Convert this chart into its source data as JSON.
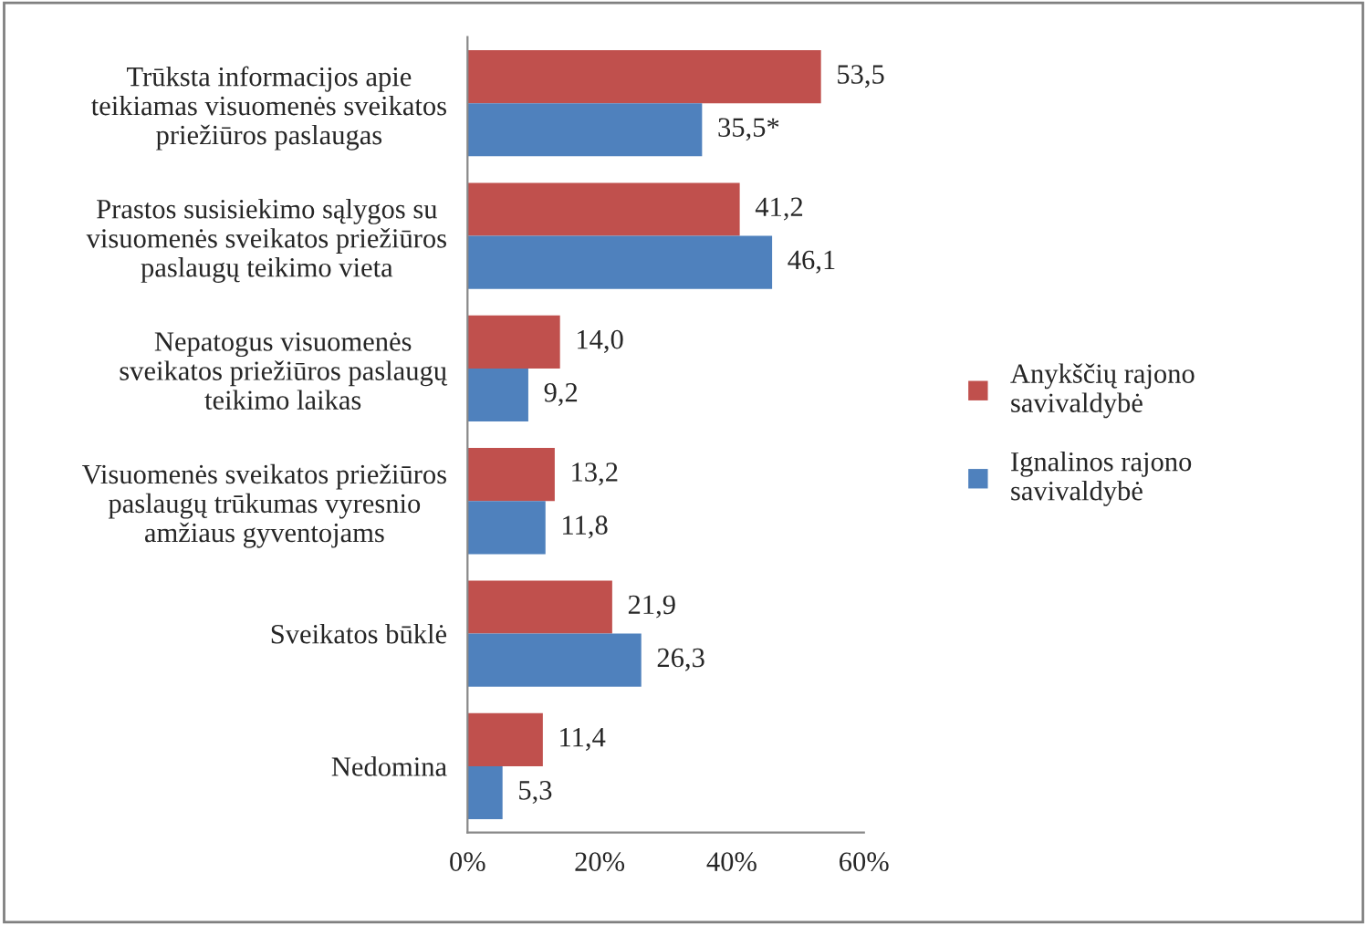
{
  "chart_data": {
    "type": "bar",
    "orientation": "horizontal",
    "categories": [
      "Trūksta informacijos apie\nteikiamas visuomenės sveikatos\npriežiūros paslaugas",
      "Prastos susisiekimo sąlygos su\nvisuomenės sveikatos priežiūros\npaslaugų teikimo vieta",
      "Nepatogus visuomenės\nsveikatos priežiūros paslaugų\nteikimo laikas",
      "Visuomenės sveikatos priežiūros\npaslaugų trūkumas vyresnio\namžiaus gyventojams",
      "Sveikatos būklė",
      "Nedomina"
    ],
    "series": [
      {
        "name": "Anykščių rajono\nsavivaldybė",
        "color": "#c0504d",
        "values": [
          53.5,
          41.2,
          14.0,
          13.2,
          21.9,
          11.4
        ],
        "value_labels": [
          "53,5",
          "41,2",
          "14,0",
          "13,2",
          "21,9",
          "11,4"
        ]
      },
      {
        "name": "Ignalinos rajono\nsavivaldybė",
        "color": "#4f81bd",
        "values": [
          35.5,
          46.1,
          9.2,
          11.8,
          26.3,
          5.3
        ],
        "value_labels": [
          "35,5*",
          "46,1",
          "9,2",
          "11,8",
          "26,3",
          "5,3"
        ]
      }
    ],
    "xlim": [
      0,
      60
    ],
    "xticks": [
      {
        "value": 0,
        "label": "0%"
      },
      {
        "value": 20,
        "label": "20%"
      },
      {
        "value": 40,
        "label": "40%"
      },
      {
        "value": 60,
        "label": "60%"
      }
    ],
    "grid": false,
    "legend": "right"
  }
}
